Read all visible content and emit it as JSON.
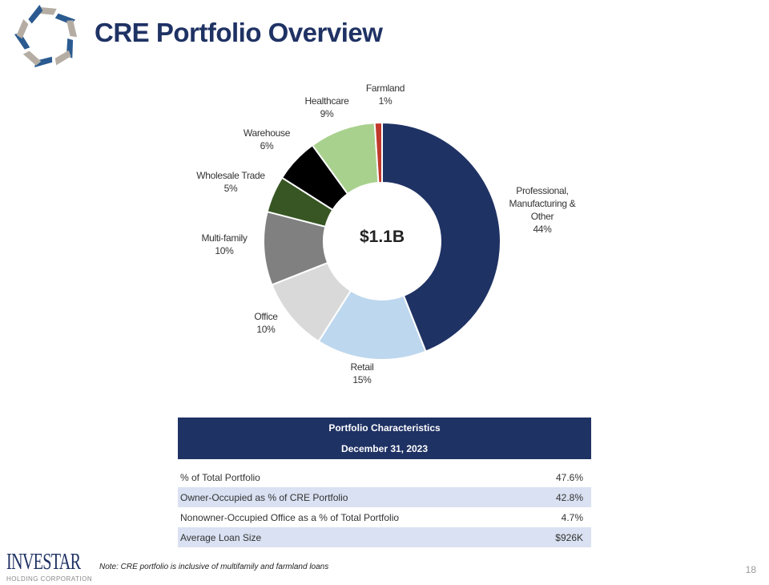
{
  "header": {
    "title": "CRE Portfolio Overview"
  },
  "chart_data": {
    "type": "pie",
    "style": "donut",
    "center_label": "$1.1B",
    "categories": [
      "Professional, Manufacturing & Other",
      "Retail",
      "Office",
      "Multi-family",
      "Wholesale Trade",
      "Warehouse",
      "Healthcare",
      "Farmland"
    ],
    "values": [
      44,
      15,
      10,
      10,
      5,
      6,
      9,
      1
    ],
    "value_labels": [
      "44%",
      "15%",
      "10%",
      "10%",
      "5%",
      "6%",
      "9%",
      "1%"
    ],
    "colors": [
      "#1f3264",
      "#bdd7ee",
      "#d9d9d9",
      "#808080",
      "#375623",
      "#000000",
      "#a9d18e",
      "#c0392b"
    ]
  },
  "table": {
    "header1": "Portfolio Characteristics",
    "header2": "December 31, 2023",
    "rows": [
      {
        "label": "% of Total Portfolio",
        "value": "47.6%"
      },
      {
        "label": "Owner-Occupied as % of CRE Portfolio",
        "value": "42.8%"
      },
      {
        "label": "Nonowner-Occupied Office as a % of Total Portfolio",
        "value": "4.7%"
      },
      {
        "label": "Average Loan Size",
        "value": "$926K"
      }
    ]
  },
  "footer": {
    "note": "Note: CRE portfolio is inclusive of multifamily and farmland loans",
    "brand": "INVESTAR",
    "brand_sub": "HOLDING CORPORATION",
    "page_number": "18"
  }
}
